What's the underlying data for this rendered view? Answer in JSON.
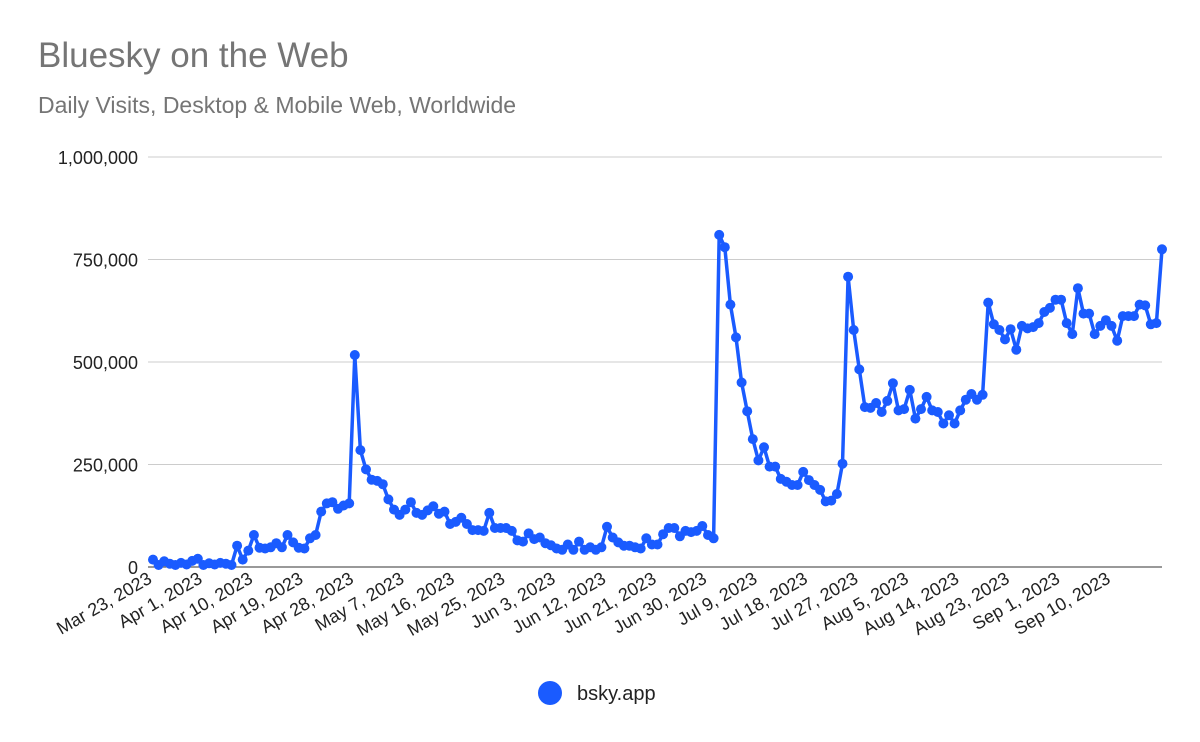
{
  "chart_data": {
    "type": "line",
    "title": "Bluesky on the Web",
    "subtitle": "Daily Visits, Desktop & Mobile Web, Worldwide",
    "xlabel": "",
    "ylabel": "",
    "ylim": [
      0,
      1000000
    ],
    "yticks": [
      0,
      250000,
      500000,
      750000,
      1000000
    ],
    "ytick_labels": [
      "0",
      "250,000",
      "500,000",
      "750,000",
      "1,000,000"
    ],
    "xtick_labels": [
      "Mar 23, 2023",
      "Apr 1, 2023",
      "Apr 10, 2023",
      "Apr 19, 2023",
      "Apr 28, 2023",
      "May 7, 2023",
      "May 16, 2023",
      "May 25, 2023",
      "Jun 3, 2023",
      "Jun 12, 2023",
      "Jun 21, 2023",
      "Jun 30, 2023",
      "Jul 9, 2023",
      "Jul 18, 2023",
      "Jul 27, 2023",
      "Aug 5, 2023",
      "Aug 14, 2023",
      "Aug 23, 2023",
      "Sep 1, 2023",
      "Sep 10, 2023"
    ],
    "grid": true,
    "legend": "bottom",
    "series": [
      {
        "name": "bsky.app",
        "color": "#1A5BFF",
        "values": [
          18000,
          5000,
          14000,
          8000,
          5000,
          10000,
          6000,
          15000,
          20000,
          5000,
          9000,
          6000,
          10000,
          8000,
          5000,
          52000,
          18000,
          40000,
          78000,
          47000,
          45000,
          48000,
          58000,
          48000,
          78000,
          60000,
          47000,
          45000,
          70000,
          78000,
          135000,
          155000,
          158000,
          142000,
          150000,
          155000,
          517000,
          285000,
          238000,
          213000,
          210000,
          202000,
          165000,
          140000,
          127000,
          140000,
          158000,
          132000,
          127000,
          138000,
          148000,
          130000,
          135000,
          105000,
          110000,
          120000,
          105000,
          90000,
          90000,
          88000,
          132000,
          95000,
          95000,
          95000,
          88000,
          65000,
          62000,
          82000,
          68000,
          72000,
          58000,
          53000,
          45000,
          42000,
          55000,
          42000,
          62000,
          42000,
          48000,
          42000,
          48000,
          98000,
          72000,
          60000,
          52000,
          52000,
          48000,
          45000,
          70000,
          55000,
          55000,
          80000,
          95000,
          95000,
          75000,
          88000,
          85000,
          88000,
          100000,
          78000,
          70000,
          810000,
          780000,
          640000,
          560000,
          450000,
          380000,
          312000,
          260000,
          292000,
          245000,
          245000,
          215000,
          208000,
          200000,
          200000,
          232000,
          212000,
          200000,
          188000,
          160000,
          162000,
          178000,
          252000,
          708000,
          578000,
          482000,
          390000,
          388000,
          400000,
          378000,
          405000,
          448000,
          382000,
          385000,
          432000,
          362000,
          385000,
          415000,
          382000,
          378000,
          350000,
          370000,
          350000,
          382000,
          408000,
          422000,
          408000,
          420000,
          645000,
          592000,
          578000,
          555000,
          580000,
          530000,
          588000,
          582000,
          585000,
          595000,
          622000,
          632000,
          652000,
          652000,
          595000,
          568000,
          680000,
          618000,
          618000,
          568000,
          588000,
          602000,
          588000,
          552000,
          612000,
          612000,
          612000,
          640000,
          638000,
          592000,
          595000,
          775000
        ]
      }
    ]
  }
}
